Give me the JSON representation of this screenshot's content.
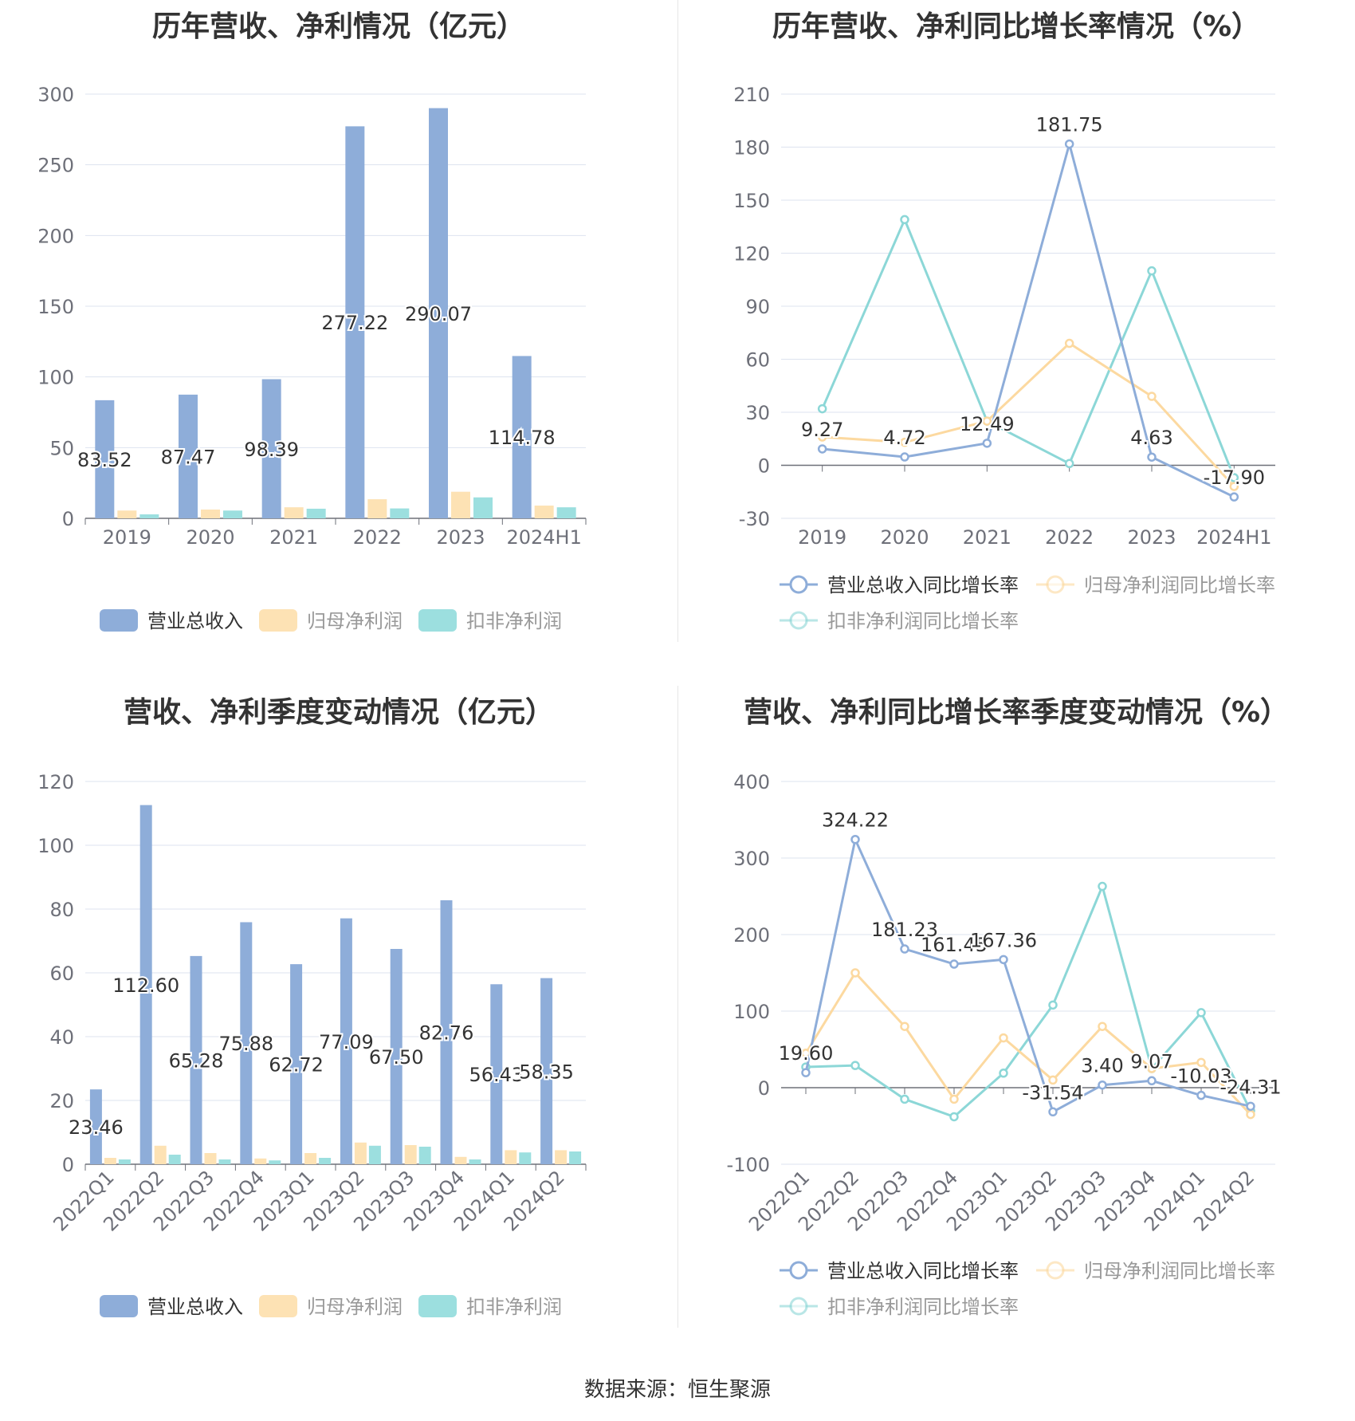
{
  "colors": {
    "revenue": "#8eadd9",
    "net_profit": "#fde2b4",
    "deducted_profit": "#9cdfdf",
    "revenue_line": "#8eadd9",
    "net_profit_line": "#fcd9a0",
    "deducted_profit_line": "#8cd7d7",
    "grid": "#dde3ef",
    "axis_text": "#6e7079"
  },
  "source": "数据来源：恒生聚源",
  "chart_data": [
    {
      "id": "annual-amounts",
      "type": "bar",
      "title": "历年营收、净利情况（亿元）",
      "categories": [
        "2019",
        "2020",
        "2021",
        "2022",
        "2023",
        "2024H1"
      ],
      "ylim": [
        0,
        300
      ],
      "yticks": [
        0,
        50,
        100,
        150,
        200,
        250,
        300
      ],
      "series": [
        {
          "name": "营业总收入",
          "values": [
            83.52,
            87.47,
            98.39,
            277.22,
            290.07,
            114.78
          ],
          "labels": [
            "83.52",
            "87.47",
            "98.39",
            "277.22",
            "290.07",
            "114.78"
          ]
        },
        {
          "name": "归母净利润",
          "values": [
            5.5,
            6.2,
            7.8,
            13.5,
            18.8,
            9.0
          ]
        },
        {
          "name": "扣非净利润",
          "values": [
            2.8,
            5.5,
            6.8,
            7.0,
            14.8,
            7.8
          ]
        }
      ],
      "legend": "bottom",
      "grid": true
    },
    {
      "id": "annual-growth",
      "type": "line",
      "title": "历年营收、净利同比增长率情况（%）",
      "categories": [
        "2019",
        "2020",
        "2021",
        "2022",
        "2023",
        "2024H1"
      ],
      "ylim": [
        -30,
        210
      ],
      "yticks": [
        -30,
        0,
        30,
        60,
        90,
        120,
        150,
        180,
        210
      ],
      "series": [
        {
          "name": "营业总收入同比增长率",
          "values": [
            9.27,
            4.72,
            12.49,
            181.75,
            4.63,
            -17.9
          ],
          "labels": [
            "9.27",
            "4.72",
            "12.49",
            "181.75",
            "4.63",
            "-17.90"
          ]
        },
        {
          "name": "归母净利润同比增长率",
          "values": [
            16,
            13,
            25,
            69,
            39,
            -12
          ]
        },
        {
          "name": "扣非净利润同比增长率",
          "values": [
            32,
            139,
            25,
            1,
            110,
            -7
          ]
        }
      ],
      "legend": "bottom",
      "grid": true
    },
    {
      "id": "quarterly-amounts",
      "type": "bar",
      "title": "营收、净利季度变动情况（亿元）",
      "categories": [
        "2022Q1",
        "2022Q2",
        "2022Q3",
        "2022Q4",
        "2023Q1",
        "2023Q2",
        "2023Q3",
        "2023Q4",
        "2024Q1",
        "2024Q2"
      ],
      "ylim": [
        0,
        120
      ],
      "yticks": [
        0,
        20,
        40,
        60,
        80,
        100,
        120
      ],
      "series": [
        {
          "name": "营业总收入",
          "values": [
            23.46,
            112.6,
            65.28,
            75.88,
            62.72,
            77.09,
            67.5,
            82.76,
            56.43,
            58.35
          ],
          "labels": [
            "23.46",
            "112.60",
            "65.28",
            "75.88",
            "62.72",
            "77.09",
            "67.50",
            "82.76",
            "56.43",
            "58.35"
          ]
        },
        {
          "name": "归母净利润",
          "values": [
            2.0,
            5.8,
            3.5,
            1.8,
            3.5,
            6.8,
            6.0,
            2.3,
            4.4,
            4.4
          ]
        },
        {
          "name": "扣非净利润",
          "values": [
            1.5,
            3.0,
            1.5,
            1.2,
            2.0,
            5.8,
            5.5,
            1.5,
            3.7,
            4.0
          ]
        }
      ],
      "legend": "bottom",
      "grid": true
    },
    {
      "id": "quarterly-growth",
      "type": "line",
      "title": "营收、净利同比增长率季度变动情况（%）",
      "categories": [
        "2022Q1",
        "2022Q2",
        "2022Q3",
        "2022Q4",
        "2023Q1",
        "2023Q2",
        "2023Q3",
        "2023Q4",
        "2024Q1",
        "2024Q2"
      ],
      "ylim": [
        -100,
        400
      ],
      "yticks": [
        -100,
        0,
        100,
        200,
        300,
        400
      ],
      "series": [
        {
          "name": "营业总收入同比增长率",
          "values": [
            19.6,
            324.22,
            181.23,
            161.45,
            167.36,
            -31.54,
            3.4,
            9.07,
            -10.03,
            -24.31
          ],
          "labels": [
            "19.60",
            "324.22",
            "181.23",
            "161.45",
            "167.36",
            "-31.54",
            "3.40",
            "9.07",
            "-10.03",
            "-24.31"
          ]
        },
        {
          "name": "归母净利润同比增长率",
          "values": [
            45,
            150,
            80,
            -15,
            65,
            10,
            80,
            25,
            33,
            -35
          ]
        },
        {
          "name": "扣非净利润同比增长率",
          "values": [
            27,
            29,
            -15,
            -38,
            19,
            108,
            263,
            25,
            98,
            -30
          ]
        }
      ],
      "legend": "bottom",
      "grid": true
    }
  ]
}
